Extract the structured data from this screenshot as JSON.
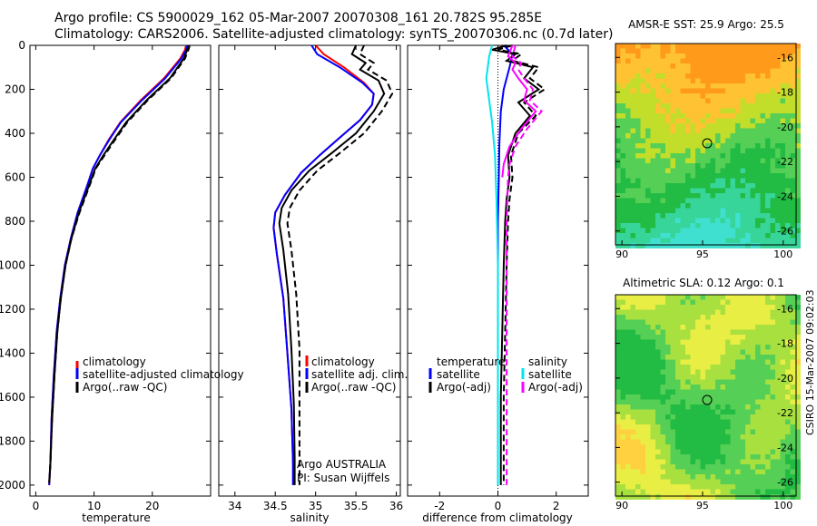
{
  "header": {
    "line1": "Argo profile: CS 5900029_162 05-Mar-2007 20070308_161 20.782S 95.285E",
    "line2": "Climatology: CARS2006. Satellite-adjusted climatology: synTS_20070306.nc (0.7d later)"
  },
  "credit": "CSIRO 15-Mar-2007 09:02:03",
  "colors": {
    "clim": "#ff0000",
    "sat": "#0000ff",
    "argo": "#000000",
    "sal_sat": "#00e5ee",
    "sal_argo": "#ff00ff"
  },
  "chart_data": [
    {
      "type": "line",
      "xlabel": "temperature",
      "xlim": [
        -1,
        30
      ],
      "ylim": [
        2050,
        0
      ],
      "xticks": [
        0,
        10,
        20
      ],
      "yticks": [
        0,
        200,
        400,
        600,
        800,
        1000,
        1200,
        1400,
        1600,
        1800,
        2000
      ],
      "legend": [
        "climatology",
        "satellite-adjusted climatology",
        "Argo(..raw -QC)"
      ],
      "legend_position": "bottom-right",
      "series": [
        {
          "name": "climatology",
          "color": "#ff0000",
          "dash": "solid",
          "x": [
            25.8,
            25.6,
            24.8,
            22,
            18,
            14.5,
            12.5,
            11,
            9.8,
            8.8,
            7.2,
            6,
            5,
            4.2,
            3.6,
            3.1,
            2.7,
            2.5,
            2.3
          ],
          "y": [
            0,
            20,
            60,
            150,
            250,
            350,
            430,
            500,
            560,
            640,
            760,
            880,
            1000,
            1150,
            1300,
            1500,
            1700,
            1900,
            2000
          ]
        },
        {
          "name": "satellite-adjusted climatology",
          "color": "#0000ff",
          "dash": "solid",
          "x": [
            26,
            25.8,
            25,
            22.2,
            18.2,
            14.6,
            12.6,
            11,
            9.8,
            8.8,
            7.2,
            6,
            5,
            4.2,
            3.6,
            3.1,
            2.7,
            2.5,
            2.3
          ],
          "y": [
            0,
            20,
            60,
            150,
            250,
            350,
            430,
            500,
            560,
            640,
            760,
            880,
            1000,
            1150,
            1300,
            1500,
            1700,
            1900,
            2000
          ]
        },
        {
          "name": "Argo raw",
          "color": "#000000",
          "dash": "solid",
          "x": [
            26.2,
            26,
            25.4,
            23,
            19,
            15.5,
            13.4,
            11.6,
            10.2,
            9.1,
            7.4,
            6.1,
            5.1,
            4.3,
            3.7,
            3.2,
            2.8,
            2.5,
            2.3
          ],
          "y": [
            0,
            20,
            60,
            150,
            250,
            350,
            430,
            500,
            560,
            640,
            760,
            880,
            1000,
            1150,
            1300,
            1500,
            1700,
            1900,
            1990
          ]
        },
        {
          "name": "Argo -QC",
          "color": "#000000",
          "dash": "dashed",
          "x": [
            26.4,
            26.2,
            25.6,
            23.2,
            19.2,
            15.7,
            13.6,
            11.8,
            10.3,
            9.2,
            7.5,
            6.1,
            5.1,
            4.3,
            3.7,
            3.2,
            2.8,
            2.5,
            2.3
          ],
          "y": [
            0,
            20,
            60,
            150,
            250,
            350,
            430,
            500,
            560,
            640,
            760,
            880,
            1000,
            1150,
            1300,
            1500,
            1700,
            1900,
            1990
          ]
        }
      ]
    },
    {
      "type": "line",
      "xlabel": "salinity",
      "xlim": [
        33.8,
        36.05
      ],
      "ylim": [
        2050,
        0
      ],
      "xticks": [
        34,
        34.5,
        35,
        35.5,
        36
      ],
      "yticks": [
        0,
        200,
        400,
        600,
        800,
        1000,
        1200,
        1400,
        1600,
        1800,
        2000
      ],
      "legend": [
        "climatology",
        "satellite adj. clim.",
        "Argo(..raw -QC)"
      ],
      "legend_position": "bottom-right",
      "annotations": [
        "Argo AUSTRALIA",
        "PI: Susan Wijffels"
      ],
      "series": [
        {
          "name": "climatology",
          "color": "#ff0000",
          "dash": "solid",
          "x": [
            35,
            35.1,
            35.35,
            35.6,
            35.72,
            35.7,
            35.55,
            35.3,
            35.05,
            34.82,
            34.62,
            34.5,
            34.48,
            34.52,
            34.6,
            34.65,
            34.7,
            34.72,
            34.72
          ],
          "y": [
            0,
            40,
            100,
            170,
            220,
            270,
            340,
            420,
            500,
            580,
            680,
            760,
            830,
            950,
            1150,
            1400,
            1650,
            1900,
            2000
          ]
        },
        {
          "name": "satellite adj. clim.",
          "color": "#0000ff",
          "dash": "solid",
          "x": [
            34.95,
            35.02,
            35.3,
            35.58,
            35.72,
            35.7,
            35.55,
            35.3,
            35.05,
            34.82,
            34.62,
            34.5,
            34.48,
            34.52,
            34.6,
            34.65,
            34.7,
            34.72,
            34.72
          ],
          "y": [
            0,
            40,
            100,
            170,
            220,
            270,
            340,
            420,
            500,
            580,
            680,
            760,
            830,
            950,
            1150,
            1400,
            1650,
            1900,
            2000
          ]
        },
        {
          "name": "Argo raw",
          "color": "#000000",
          "dash": "solid",
          "x": [
            35.5,
            35.45,
            35.62,
            35.55,
            35.78,
            35.85,
            35.72,
            35.5,
            35.2,
            34.92,
            34.7,
            34.58,
            34.55,
            34.6,
            34.66,
            34.7,
            34.73,
            34.74,
            34.74
          ],
          "y": [
            0,
            40,
            80,
            110,
            160,
            220,
            300,
            400,
            490,
            570,
            660,
            740,
            810,
            930,
            1130,
            1380,
            1630,
            1880,
            2000
          ]
        },
        {
          "name": "Argo -QC",
          "color": "#000000",
          "dash": "dashed",
          "x": [
            35.6,
            35.55,
            35.72,
            35.65,
            35.88,
            35.95,
            35.82,
            35.6,
            35.3,
            35.02,
            34.8,
            34.68,
            34.65,
            34.7,
            34.76,
            34.8,
            34.8,
            34.8,
            34.8
          ],
          "y": [
            0,
            40,
            80,
            110,
            160,
            220,
            300,
            400,
            490,
            570,
            660,
            740,
            810,
            930,
            1130,
            1380,
            1630,
            1880,
            2000
          ]
        }
      ]
    },
    {
      "type": "line",
      "xlabel": "difference from climatology",
      "xlim": [
        -3.1,
        3.1
      ],
      "ylim": [
        2050,
        0
      ],
      "xticks": [
        -2,
        0,
        2
      ],
      "yticks": [
        0,
        200,
        400,
        600,
        800,
        1000,
        1200,
        1400,
        1600,
        1800,
        2000
      ],
      "legend_left_title": "temperature",
      "legend_left": [
        "satellite",
        "Argo(-adj)"
      ],
      "legend_right_title": "salinity",
      "legend_right": [
        "satellite",
        "Argo(-adj)"
      ],
      "series": [
        {
          "name": "temperature satellite",
          "color": "#0000ff",
          "dash": "solid",
          "x": [
            0.2,
            0.5,
            0.4,
            0.2,
            0.1,
            0.05,
            0.03,
            0,
            0,
            0,
            0
          ],
          "y": [
            0,
            40,
            100,
            200,
            300,
            450,
            600,
            800,
            1000,
            1100,
            1120
          ]
        },
        {
          "name": "temperature Argo raw",
          "color": "#000000",
          "dash": "solid",
          "x": [
            0.3,
            -0.2,
            0.6,
            0.3,
            1.2,
            0.9,
            1.4,
            0.7,
            1.1,
            0.6,
            0.35,
            0.4,
            0.3,
            0.25,
            0.2,
            0.15,
            0.1,
            0.1
          ],
          "y": [
            0,
            20,
            40,
            70,
            100,
            150,
            200,
            260,
            320,
            400,
            500,
            600,
            700,
            800,
            1000,
            1300,
            1600,
            2000
          ]
        },
        {
          "name": "temperature Argo -adj",
          "color": "#000000",
          "dash": "dashed",
          "x": [
            0.5,
            0,
            0.8,
            0.5,
            1.4,
            1.1,
            1.6,
            0.9,
            1.3,
            0.7,
            0.45,
            0.5,
            0.4,
            0.35,
            0.3,
            0.25,
            0.2,
            0.2
          ],
          "y": [
            0,
            20,
            40,
            70,
            100,
            150,
            200,
            260,
            320,
            400,
            500,
            600,
            700,
            800,
            1000,
            1300,
            1600,
            2000
          ]
        },
        {
          "name": "salinity satellite",
          "color": "#00e5ee",
          "dash": "solid",
          "x": [
            -0.2,
            -0.3,
            -0.4,
            -0.3,
            -0.2,
            -0.1,
            -0.05,
            0,
            0,
            0
          ],
          "y": [
            0,
            50,
            150,
            250,
            350,
            500,
            700,
            1000,
            1500,
            2000
          ]
        },
        {
          "name": "salinity Argo raw",
          "color": "#ff00ff",
          "dash": "solid",
          "x": [
            0.5,
            0.35,
            0.6,
            0.5,
            0.7,
            1.0,
            0.9,
            1.3,
            0.8,
            0.4,
            0.2,
            0.15
          ],
          "y": [
            0,
            50,
            80,
            110,
            150,
            200,
            250,
            300,
            380,
            460,
            540,
            600
          ]
        },
        {
          "name": "salinity Argo -adj",
          "color": "#ff00ff",
          "dash": "dashed",
          "x": [
            0.6,
            0.5,
            0.8,
            0.7,
            0.9,
            1.2,
            1.1,
            1.5,
            1.0,
            0.6,
            0.4,
            0.35,
            0.3,
            0.3,
            0.3
          ],
          "y": [
            0,
            50,
            80,
            110,
            150,
            200,
            250,
            300,
            380,
            460,
            540,
            600,
            800,
            1200,
            2000
          ]
        }
      ]
    },
    {
      "type": "heatmap",
      "title": "AMSR-E SST: 25.9 Argo: 25.5",
      "xlim": [
        89.6,
        100.8
      ],
      "ylim": [
        -26.8,
        -15.2
      ],
      "xticks": [
        90,
        95,
        100
      ],
      "yticks": [
        -16,
        -18,
        -20,
        -22,
        -24,
        -26
      ],
      "marker": {
        "lon": 95.285,
        "lat": -20.782
      },
      "palette": [
        "#ff9a1a",
        "#ffc233",
        "#c2dd2a",
        "#55cf55",
        "#22bb44",
        "#37d59a",
        "#40e0d0"
      ]
    },
    {
      "type": "heatmap",
      "title": "Altimetric SLA: 0.12 Argo: 0.1",
      "xlim": [
        89.6,
        100.8
      ],
      "ylim": [
        -26.8,
        -15.2
      ],
      "xticks": [
        90,
        95,
        100
      ],
      "yticks": [
        -16,
        -18,
        -20,
        -22,
        -24,
        -26
      ],
      "marker": {
        "lon": 95.285,
        "lat": -20.782
      },
      "palette": [
        "#22bb44",
        "#55cf55",
        "#a8e040",
        "#e8ee44",
        "#ffd040",
        "#f8b040"
      ]
    }
  ]
}
